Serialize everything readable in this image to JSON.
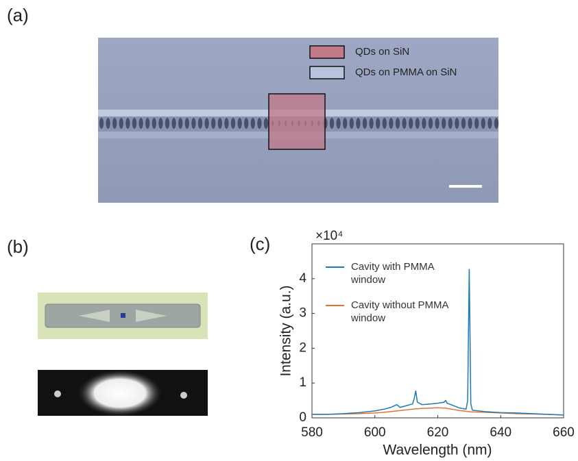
{
  "panels": {
    "a": "(a)",
    "b": "(b)",
    "c": "(c)"
  },
  "sem_legend": [
    "QDs on SiN",
    "QDs on PMMA on SiN"
  ],
  "chart_data": {
    "type": "line",
    "xlabel": "Wavelength (nm)",
    "ylabel": "Intensity (a.u.)",
    "y_multiplier": "×10⁴",
    "x": [
      580,
      585,
      590,
      595,
      600,
      603,
      605,
      607,
      608,
      610,
      612,
      612.5,
      613,
      613.5,
      615,
      618,
      620,
      622,
      622.5,
      623,
      625,
      627,
      629,
      629.5,
      630,
      630.5,
      631,
      635,
      640,
      645,
      650,
      655,
      660
    ],
    "series": [
      {
        "name": "Cavity with PMMA window",
        "color": "#1f77b4",
        "values": [
          0.1,
          0.1,
          0.12,
          0.15,
          0.2,
          0.25,
          0.3,
          0.38,
          0.3,
          0.35,
          0.4,
          0.55,
          0.78,
          0.45,
          0.38,
          0.4,
          0.42,
          0.45,
          0.5,
          0.42,
          0.35,
          0.28,
          0.25,
          0.5,
          4.28,
          0.4,
          0.22,
          0.18,
          0.15,
          0.14,
          0.12,
          0.1,
          0.08
        ]
      },
      {
        "name": "Cavity without PMMA  window",
        "color": "#e8712a",
        "values": [
          0.1,
          0.1,
          0.11,
          0.12,
          0.14,
          0.16,
          0.18,
          0.2,
          0.21,
          0.23,
          0.25,
          0.25,
          0.26,
          0.26,
          0.27,
          0.28,
          0.29,
          0.28,
          0.28,
          0.27,
          0.24,
          0.21,
          0.19,
          0.18,
          0.18,
          0.17,
          0.17,
          0.16,
          0.14,
          0.12,
          0.11,
          0.1,
          0.08
        ]
      }
    ],
    "xlim": [
      580,
      660
    ],
    "xticks": [
      580,
      600,
      620,
      640,
      660
    ],
    "ylim": [
      0,
      5
    ],
    "yticks": [
      0,
      1,
      2,
      3,
      4
    ]
  }
}
